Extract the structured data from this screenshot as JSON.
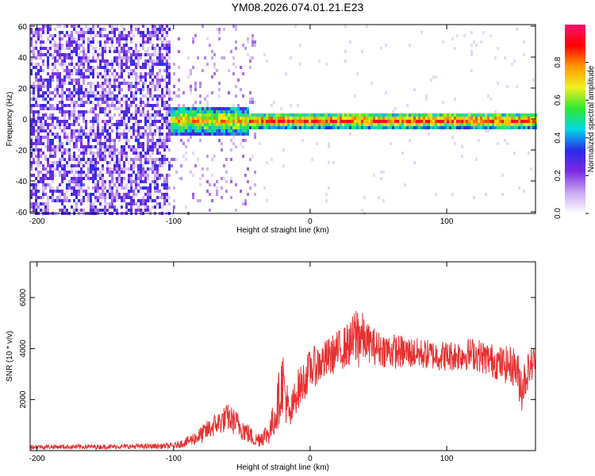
{
  "title": "YM08.2026.074.01.21.E23",
  "colors": {
    "snr_line": "#e83030",
    "axis": "#000000",
    "colormap": [
      "#ffffff",
      "#c8a8f0",
      "#7b2be0",
      "#2a2ae8",
      "#00d8e8",
      "#30e830",
      "#f0f020",
      "#ff9900",
      "#ff0000",
      "#ff1070"
    ]
  },
  "chart_data": [
    {
      "type": "heatmap",
      "name": "spectrogram",
      "xlabel": "Height of straight line (km)",
      "ylabel": "Frequency (Hz)",
      "xlim": [
        -205,
        165
      ],
      "ylim": [
        -61,
        61
      ],
      "xticks": [
        -200,
        -100,
        0,
        100
      ],
      "xtick_labels": [
        "-200",
        "-100",
        "0",
        "100"
      ],
      "yticks": [
        -60,
        -40,
        -20,
        0,
        20,
        40,
        60
      ],
      "ytick_labels": [
        "-60",
        "-40",
        "-20",
        "0",
        "20",
        "40",
        "60"
      ],
      "colorbar": {
        "label": "Normalized spectral amplitude",
        "range": [
          0,
          1
        ],
        "ticks": [
          0.0,
          0.2,
          0.4,
          0.6,
          0.8
        ],
        "tick_labels": [
          "0.0",
          "0.2",
          "0.4",
          "0.6",
          "0.8"
        ]
      },
      "features": {
        "noise_region_km": [
          -205,
          -103
        ],
        "noise_amplitude_range": [
          0.05,
          0.35
        ],
        "signal_onset_km": -103,
        "signal_band_center_hz": 0,
        "signal_band_halfwidth_hz": 5,
        "peak_amplitude": 0.95
      }
    },
    {
      "type": "line",
      "name": "snr",
      "xlabel": "Height of straight line (km)",
      "ylabel": "SNR (10 * v/v)",
      "xlim": [
        -205,
        165
      ],
      "ylim": [
        0,
        7400
      ],
      "xticks": [
        -200,
        -100,
        0,
        100
      ],
      "xtick_labels": [
        "-200",
        "-100",
        "0",
        "100"
      ],
      "yticks": [
        2000,
        4000,
        6000
      ],
      "ytick_labels": [
        "2000",
        "4000",
        "6000"
      ],
      "series": [
        {
          "name": "SNR",
          "x": [
            -205,
            -150,
            -100,
            -90,
            -80,
            -70,
            -60,
            -50,
            -40,
            -30,
            -25,
            -20,
            -15,
            -10,
            -5,
            0,
            10,
            20,
            30,
            35,
            40,
            50,
            60,
            80,
            100,
            120,
            140,
            150,
            155,
            160,
            165
          ],
          "mean": [
            150,
            150,
            180,
            350,
            600,
            1000,
            1300,
            900,
            400,
            700,
            1500,
            2800,
            1200,
            2300,
            2700,
            3200,
            3500,
            3900,
            4200,
            4600,
            4300,
            4000,
            3900,
            3800,
            3700,
            3800,
            3400,
            3300,
            2500,
            3200,
            3600
          ],
          "spread": [
            90,
            90,
            110,
            200,
            350,
            450,
            550,
            500,
            300,
            450,
            900,
            1300,
            700,
            800,
            800,
            800,
            800,
            800,
            900,
            1500,
            800,
            700,
            700,
            600,
            600,
            650,
            700,
            800,
            1000,
            700,
            700
          ]
        }
      ]
    }
  ]
}
